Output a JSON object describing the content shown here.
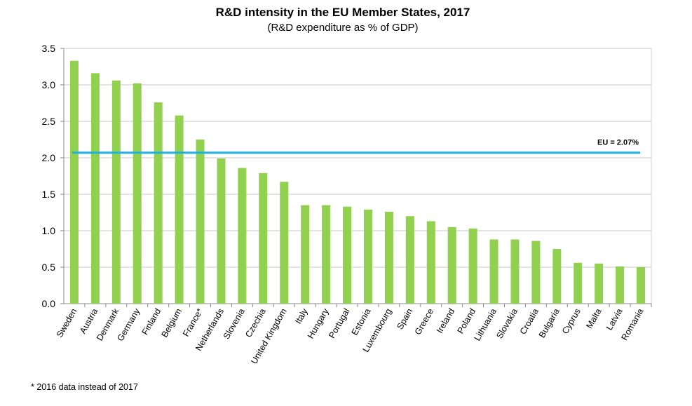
{
  "chart_data": {
    "type": "bar",
    "title": "R&D intensity in the EU Member States, 2017",
    "subtitle": "(R&D expenditure as % of GDP)",
    "xlabel": "",
    "ylabel": "",
    "ylim": [
      0,
      3.5
    ],
    "yticks": [
      "0.0",
      "0.5",
      "1.0",
      "1.5",
      "2.0",
      "2.5",
      "3.0",
      "3.5"
    ],
    "grid": true,
    "categories": [
      "Sweden",
      "Austria",
      "Denmark",
      "Germany",
      "Finland",
      "Belgium",
      "France*",
      "Netherlands",
      "Slovenia",
      "Czechia",
      "United Kingdom",
      "Italy",
      "Hungary",
      "Portugal",
      "Estonia",
      "Luxembourg",
      "Spain",
      "Greece",
      "Ireland",
      "Poland",
      "Lithuania",
      "Slovakia",
      "Croatia",
      "Bulgaria",
      "Cyprus",
      "Malta",
      "Latvia",
      "Romania"
    ],
    "values": [
      3.33,
      3.16,
      3.06,
      3.02,
      2.76,
      2.58,
      2.25,
      1.99,
      1.86,
      1.79,
      1.67,
      1.35,
      1.35,
      1.33,
      1.29,
      1.26,
      1.2,
      1.13,
      1.05,
      1.03,
      0.88,
      0.88,
      0.86,
      0.75,
      0.56,
      0.55,
      0.51,
      0.5
    ],
    "bar_color": "#92d050",
    "reference_line": {
      "value": 2.07,
      "label": "EU = 2.07%",
      "color": "#1fb0e6"
    },
    "footnote": "* 2016 data instead of 2017"
  }
}
